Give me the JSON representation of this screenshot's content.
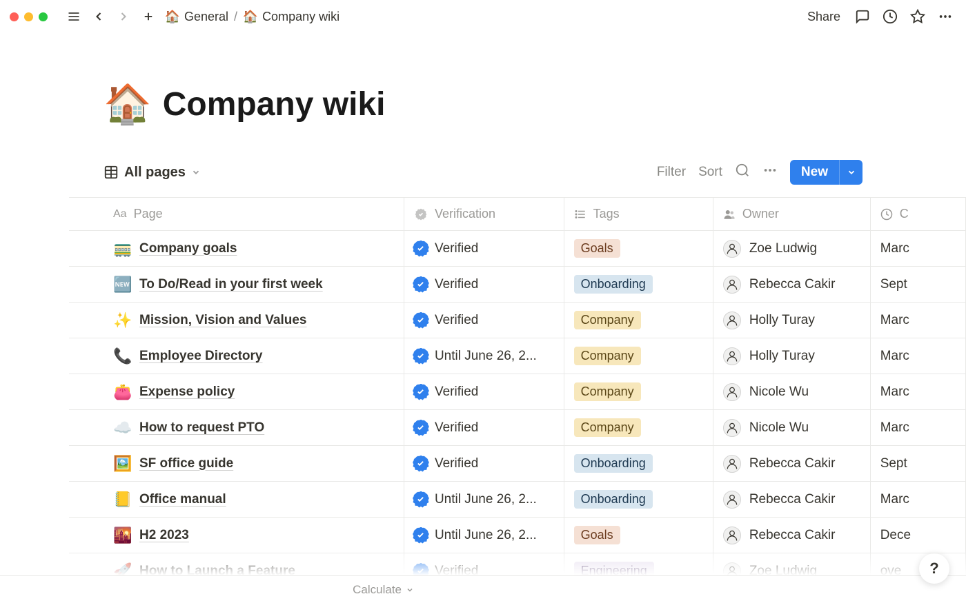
{
  "colors": {
    "accent": "#2f80ed",
    "text": "#37352f",
    "muted": "#9b9a97",
    "border": "#e9e9e7",
    "tag_goals_bg": "#f5e0d4",
    "tag_goals_fg": "#6b3b1e",
    "tag_onboarding_bg": "#d7e5ef",
    "tag_onboarding_fg": "#1f3a52",
    "tag_company_bg": "#f7e7bb",
    "tag_company_fg": "#5a4616",
    "tag_engineering_bg": "#e6deee",
    "tag_engineering_fg": "#4a2f66"
  },
  "topbar": {
    "share_label": "Share"
  },
  "breadcrumb": {
    "parent_icon": "🏠",
    "parent_label": "General",
    "separator": "/",
    "current_icon": "🏠",
    "current_label": "Company wiki"
  },
  "page": {
    "emoji": "🏠",
    "title": "Company wiki"
  },
  "view": {
    "tab_label": "All pages",
    "filter_label": "Filter",
    "sort_label": "Sort",
    "new_label": "New",
    "calculate_label": "Calculate"
  },
  "columns": {
    "page": "Page",
    "verification": "Verification",
    "tags": "Tags",
    "owner": "Owner",
    "created": "C"
  },
  "rows": [
    {
      "emoji": "🚃",
      "title": "Company goals",
      "verification": "Verified",
      "tag": "Goals",
      "tag_key": "goals",
      "owner": "Zoe Ludwig",
      "created": "Marc"
    },
    {
      "emoji": "🆕",
      "title": "To Do/Read in your first week",
      "verification": "Verified",
      "tag": "Onboarding",
      "tag_key": "onboarding",
      "owner": "Rebecca Cakir",
      "created": "Sept"
    },
    {
      "emoji": "✨",
      "title": "Mission, Vision and Values",
      "verification": "Verified",
      "tag": "Company",
      "tag_key": "company",
      "owner": "Holly Turay",
      "created": "Marc"
    },
    {
      "emoji": "📞",
      "title": "Employee Directory",
      "verification": "Until June 26, 2...",
      "tag": "Company",
      "tag_key": "company",
      "owner": "Holly Turay",
      "created": "Marc"
    },
    {
      "emoji": "👛",
      "title": "Expense policy",
      "verification": "Verified",
      "tag": "Company",
      "tag_key": "company",
      "owner": "Nicole Wu",
      "created": "Marc"
    },
    {
      "emoji": "☁️",
      "title": "How to request PTO",
      "verification": "Verified",
      "tag": "Company",
      "tag_key": "company",
      "owner": "Nicole Wu",
      "created": "Marc"
    },
    {
      "emoji": "🖼️",
      "title": "SF office guide",
      "verification": "Verified",
      "tag": "Onboarding",
      "tag_key": "onboarding",
      "owner": "Rebecca Cakir",
      "created": "Sept"
    },
    {
      "emoji": "📒",
      "title": "Office manual",
      "verification": "Until June 26, 2...",
      "tag": "Onboarding",
      "tag_key": "onboarding",
      "owner": "Rebecca Cakir",
      "created": "Marc"
    },
    {
      "emoji": "🌇",
      "title": "H2 2023",
      "verification": "Until June 26, 2...",
      "tag": "Goals",
      "tag_key": "goals",
      "owner": "Rebecca Cakir",
      "created": "Dece"
    },
    {
      "emoji": "🚀",
      "title": "How to Launch a Feature",
      "verification": "Verified",
      "tag": "Engineering",
      "tag_key": "engineering",
      "owner": "Zoe Ludwig",
      "created": "ove"
    }
  ]
}
